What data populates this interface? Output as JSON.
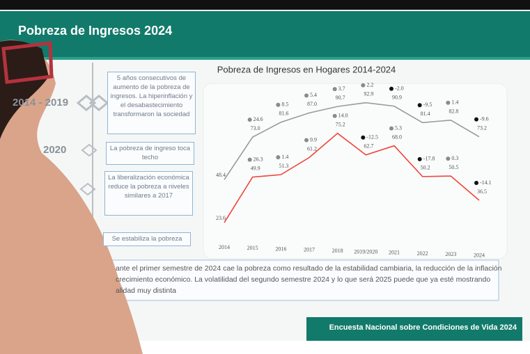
{
  "header": {
    "title": "Pobreza de Ingresos 2024"
  },
  "timeline": {
    "labels": [
      "2014 - 2019",
      "2020"
    ],
    "boxes": [
      "5 años consecutivos de aumento de la pobreza de ingresos. La hiperinflación y el desabastecimiento transformaron la sociedad",
      "La pobreza de ingreso toca techo",
      "La liberalización económica reduce la pobreza a niveles similares a 2017",
      "Se estabiliza la pobreza"
    ]
  },
  "chart_data": {
    "type": "line",
    "title": "Pobreza de Ingresos en Hogares 2014-2024",
    "categories": [
      "2014",
      "2015",
      "2016",
      "2017",
      "2018",
      "2019/2020",
      "2021",
      "2022",
      "2023",
      "2024"
    ],
    "ylim": [
      20,
      100
    ],
    "series": [
      {
        "color": "#9a9a9a",
        "values": [
          48.4,
          73.0,
          81.6,
          87.0,
          90.7,
          92.9,
          90.9,
          81.4,
          82.8,
          73.2
        ],
        "value_labels": [
          "48.4",
          "73.0",
          "81.6",
          "87.0",
          "90.7",
          "92.9",
          "90.9",
          "81.4",
          "82.8",
          "73.2"
        ],
        "changes": [
          null,
          24.6,
          8.5,
          5.4,
          3.7,
          2.2,
          -2.0,
          -9.5,
          1.4,
          -9.6
        ],
        "change_labels": [
          null,
          "24.6",
          "8.5",
          "5.4",
          "3.7",
          "2.2",
          "-2.0",
          "-9.5",
          "1.4",
          "-9.6"
        ]
      },
      {
        "color": "#f0433a",
        "values": [
          23.6,
          49.9,
          51.3,
          61.2,
          75.2,
          62.7,
          68.0,
          50.2,
          50.5,
          36.5
        ],
        "value_labels": [
          "23.6",
          "49.9",
          "51.3",
          "61.2",
          "75.2",
          "62.7",
          "68.0",
          "50.2",
          "50.5",
          "36.5"
        ],
        "changes": [
          null,
          26.3,
          1.4,
          9.9,
          14.0,
          -12.5,
          5.3,
          -17.8,
          0.3,
          -14.1
        ],
        "change_labels": [
          null,
          "26.3",
          "1.4",
          "9.9",
          "14.0",
          "-12.5",
          "5.3",
          "-17.8",
          "0.3",
          "-14.1"
        ]
      }
    ]
  },
  "note": {
    "lines": [
      "ante el primer semestre de 2024 cae la pobreza como resultado de la estabilidad cambiaria, la reducción de la inflación",
      "crecimiento económico. La volatilidad del segundo semestre 2024 y lo que será 2025 puede que ya esté mostrando",
      "alidad muy distinta"
    ]
  },
  "footer": {
    "text": "Encuesta Nacional sobre Condiciones de Vida 2024"
  }
}
